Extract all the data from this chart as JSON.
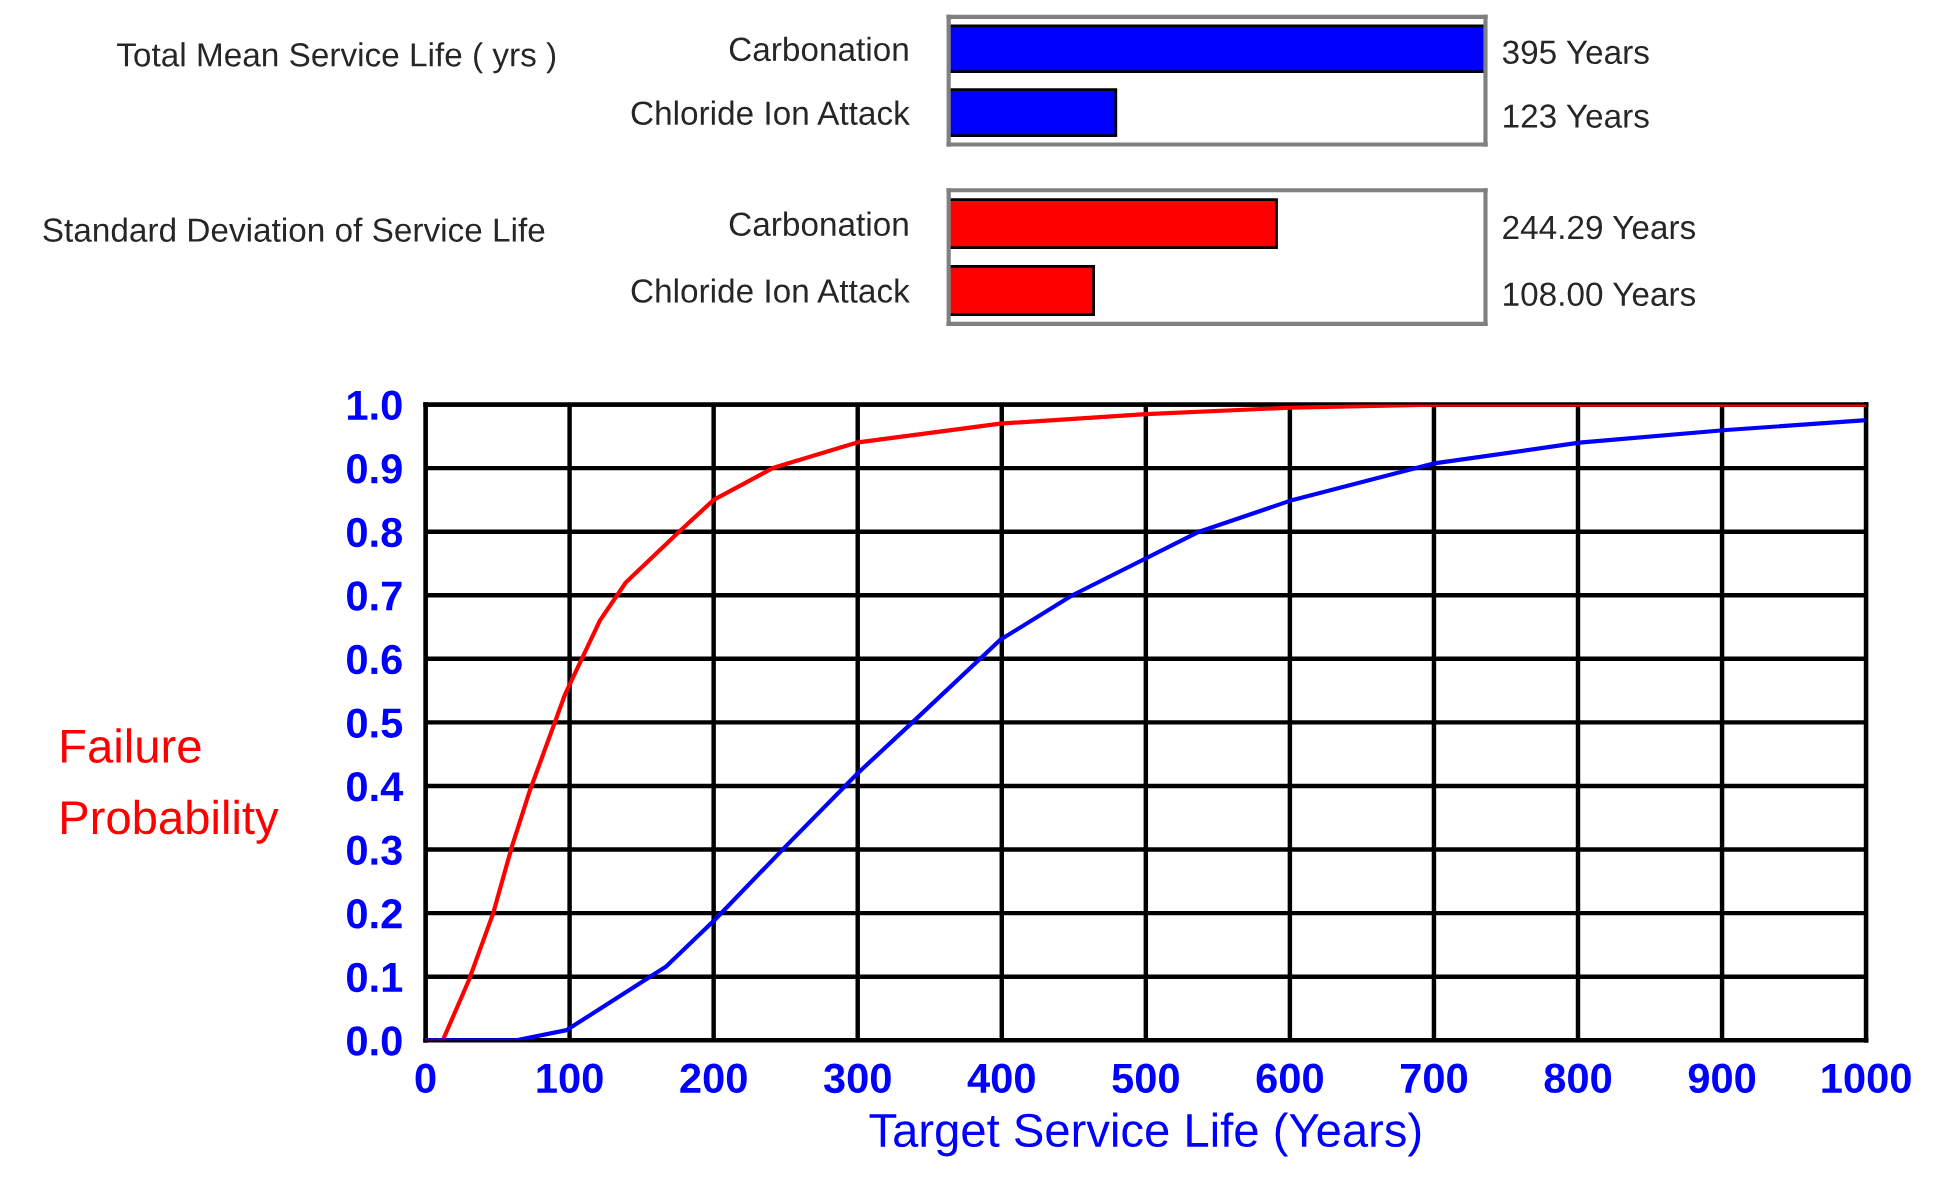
{
  "chart_data": [
    {
      "type": "bar",
      "orientation": "horizontal",
      "title": "Total Mean Service Life ( yrs )",
      "categories": [
        "Carbonation",
        "Chloride Ion Attack"
      ],
      "values": [
        395,
        123
      ],
      "colors": [
        "#0000ff",
        "#0000ff"
      ],
      "value_labels": [
        "395 Years",
        "123 Years"
      ],
      "xlim": [
        0,
        395
      ],
      "tick_labels": "y",
      "grid": false,
      "legend": false
    },
    {
      "type": "bar",
      "orientation": "horizontal",
      "title": "Standard Deviation of Service Life",
      "categories": [
        "Carbonation",
        "Chloride Ion Attack"
      ],
      "values": [
        244.29,
        108.0
      ],
      "colors": [
        "#ff0000",
        "#ff0000"
      ],
      "value_labels": [
        "244.29 Years",
        "108.00 Years"
      ],
      "xlim": [
        0,
        400
      ],
      "tick_labels": "y",
      "grid": false,
      "legend": false
    },
    {
      "type": "line",
      "xlabel": "Target Service Life (Years)",
      "ylabel": "Failure\nProbability",
      "xlim": [
        0,
        1000
      ],
      "ylim": [
        0,
        1.0
      ],
      "xticks": [
        0,
        100,
        200,
        300,
        400,
        500,
        600,
        700,
        800,
        900,
        1000
      ],
      "yticks": [
        {
          "value": 0,
          "label": "0.0"
        },
        0.1,
        0.2,
        0.3,
        0.4,
        0.5,
        0.6,
        0.7,
        0.8,
        0.9,
        {
          "value": 1.0,
          "label": "1.0"
        }
      ],
      "grid": true,
      "legend": false,
      "marker": "none",
      "line_style": "solid",
      "series": [
        {
          "color": "#ff0000",
          "x": [
            0,
            12,
            30,
            47,
            60,
            72,
            97,
            121,
            139,
            176,
            200,
            241,
            299,
            399,
            500,
            600,
            700,
            800,
            900,
            1000
          ],
          "values": [
            0,
            0,
            0.094,
            0.2,
            0.305,
            0.39,
            0.545,
            0.66,
            0.72,
            0.8,
            0.85,
            0.9,
            0.94,
            0.97,
            0.985,
            0.995,
            1.0,
            1.0,
            1.0,
            1.0
          ]
        },
        {
          "color": "#0000ff",
          "x": [
            0,
            63,
            98,
            167,
            201,
            250,
            300,
            338,
            399,
            449,
            537,
            602,
            699,
            801,
            903,
            998
          ],
          "values": [
            0,
            0,
            0.016,
            0.116,
            0.19,
            0.305,
            0.42,
            0.5,
            0.63,
            0.7,
            0.8,
            0.85,
            0.907,
            0.94,
            0.96,
            0.975
          ]
        }
      ]
    }
  ]
}
